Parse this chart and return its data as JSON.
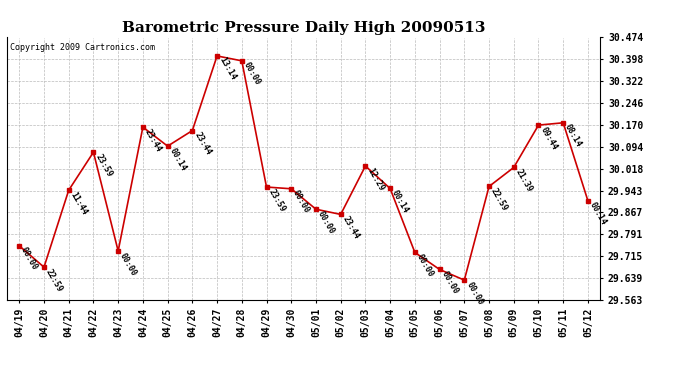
{
  "title": "Barometric Pressure Daily High 20090513",
  "copyright": "Copyright 2009 Cartronics.com",
  "x_labels": [
    "04/19",
    "04/20",
    "04/21",
    "04/22",
    "04/23",
    "04/24",
    "04/25",
    "04/26",
    "04/27",
    "04/28",
    "04/29",
    "04/30",
    "05/01",
    "05/02",
    "05/03",
    "05/04",
    "05/05",
    "05/06",
    "05/07",
    "05/08",
    "05/09",
    "05/10",
    "05/11",
    "05/12"
  ],
  "y_values": [
    29.751,
    29.677,
    29.944,
    30.076,
    29.733,
    30.163,
    30.097,
    30.151,
    30.41,
    30.393,
    29.955,
    29.949,
    29.878,
    29.86,
    30.028,
    29.95,
    29.728,
    29.669,
    29.632,
    29.957,
    30.023,
    30.17,
    30.178,
    29.907
  ],
  "point_labels": [
    "00:00",
    "22:59",
    "11:44",
    "23:59",
    "00:00",
    "23:44",
    "00:14",
    "23:44",
    "13:14",
    "00:00",
    "23:59",
    "00:00",
    "00:00",
    "23:44",
    "12:29",
    "00:14",
    "00:00",
    "00:00",
    "00:00",
    "22:59",
    "21:39",
    "09:44",
    "08:14",
    "00:14"
  ],
  "ylim_min": 29.563,
  "ylim_max": 30.474,
  "yticks": [
    29.563,
    29.639,
    29.715,
    29.791,
    29.867,
    29.943,
    30.018,
    30.094,
    30.17,
    30.246,
    30.322,
    30.398,
    30.474
  ],
  "line_color": "#cc0000",
  "marker_color": "#cc0000",
  "bg_color": "#ffffff",
  "grid_color": "#bbbbbb",
  "title_fontsize": 11,
  "tick_fontsize": 7,
  "annot_fontsize": 6,
  "copyright_fontsize": 6
}
